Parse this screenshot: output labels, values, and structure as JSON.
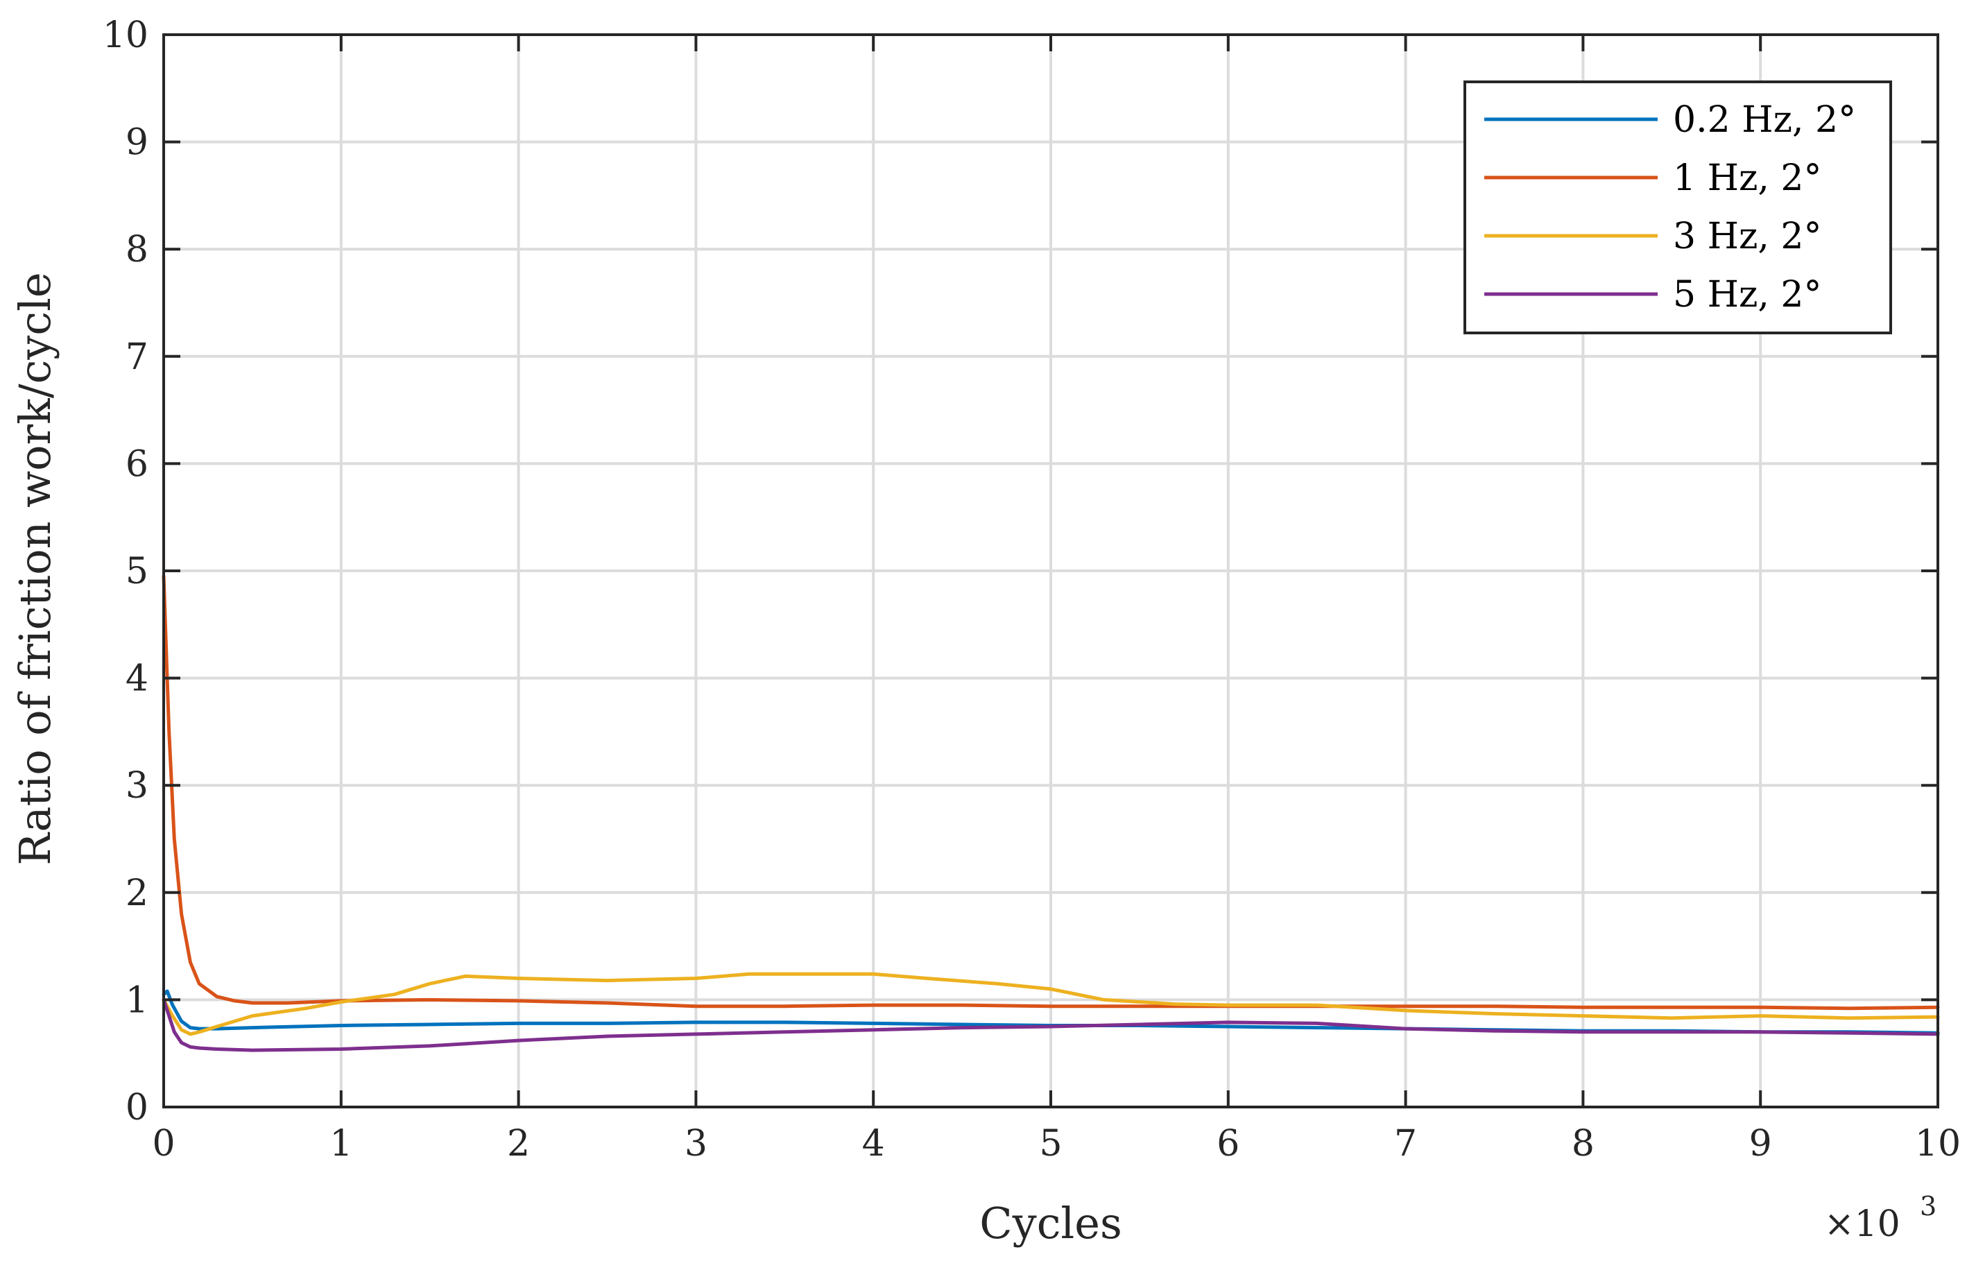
{
  "chart_data": {
    "type": "line",
    "title": "",
    "xlabel": "Cycles",
    "ylabel": "Ratio of friction work/cycle",
    "x_multiplier": "×10",
    "x_multiplier_exponent": "3",
    "xlim": [
      0,
      10
    ],
    "ylim": [
      0,
      10
    ],
    "xticks": [
      "0",
      "1",
      "2",
      "3",
      "4",
      "5",
      "6",
      "7",
      "8",
      "9",
      "10"
    ],
    "yticks": [
      "0",
      "1",
      "2",
      "3",
      "4",
      "5",
      "6",
      "7",
      "8",
      "9",
      "10"
    ],
    "grid": true,
    "legend_position": "top-right",
    "series": [
      {
        "name": "0.2 Hz, 2°",
        "color": "#0072BD",
        "x": [
          0,
          0.02,
          0.05,
          0.1,
          0.15,
          0.2,
          0.3,
          0.5,
          1,
          1.5,
          2,
          2.5,
          3,
          3.5,
          4,
          4.5,
          5,
          5.5,
          6,
          6.5,
          7,
          7.5,
          8,
          8.5,
          9,
          9.5,
          10
        ],
        "y": [
          1.05,
          1.08,
          0.95,
          0.8,
          0.74,
          0.73,
          0.73,
          0.74,
          0.76,
          0.77,
          0.78,
          0.78,
          0.79,
          0.79,
          0.78,
          0.77,
          0.76,
          0.76,
          0.75,
          0.74,
          0.73,
          0.72,
          0.71,
          0.71,
          0.7,
          0.7,
          0.69
        ]
      },
      {
        "name": "1 Hz, 2°",
        "color": "#D95319",
        "x": [
          0,
          0.03,
          0.06,
          0.1,
          0.15,
          0.2,
          0.3,
          0.4,
          0.5,
          0.7,
          1,
          1.5,
          2,
          2.5,
          3,
          3.5,
          4,
          4.5,
          5,
          5.5,
          6,
          6.5,
          7,
          7.5,
          8,
          8.5,
          9,
          9.5,
          10
        ],
        "y": [
          4.95,
          3.5,
          2.5,
          1.8,
          1.35,
          1.15,
          1.03,
          0.99,
          0.97,
          0.97,
          0.99,
          1.0,
          0.99,
          0.97,
          0.94,
          0.94,
          0.95,
          0.95,
          0.94,
          0.94,
          0.94,
          0.94,
          0.94,
          0.94,
          0.93,
          0.93,
          0.93,
          0.92,
          0.93
        ]
      },
      {
        "name": "3 Hz, 2°",
        "color": "#EDB120",
        "x": [
          0,
          0.05,
          0.1,
          0.15,
          0.2,
          0.3,
          0.5,
          0.8,
          1,
          1.3,
          1.5,
          1.7,
          2,
          2.5,
          3,
          3.3,
          3.7,
          4,
          4.3,
          4.7,
          5,
          5.3,
          5.7,
          6,
          6.5,
          7,
          7.5,
          8,
          8.5,
          9,
          9.5,
          10
        ],
        "y": [
          1.0,
          0.85,
          0.72,
          0.68,
          0.7,
          0.75,
          0.85,
          0.92,
          0.98,
          1.05,
          1.15,
          1.22,
          1.2,
          1.18,
          1.2,
          1.24,
          1.24,
          1.24,
          1.2,
          1.15,
          1.1,
          1.0,
          0.96,
          0.95,
          0.95,
          0.9,
          0.87,
          0.85,
          0.83,
          0.85,
          0.83,
          0.84
        ]
      },
      {
        "name": "5 Hz, 2°",
        "color": "#7E2F8E",
        "x": [
          0,
          0.03,
          0.06,
          0.1,
          0.15,
          0.2,
          0.3,
          0.5,
          1,
          1.5,
          2,
          2.5,
          3,
          3.5,
          4,
          4.5,
          5,
          5.5,
          6,
          6.5,
          7,
          7.5,
          8,
          8.5,
          9,
          9.5,
          10
        ],
        "y": [
          1.0,
          0.85,
          0.7,
          0.6,
          0.56,
          0.55,
          0.54,
          0.53,
          0.54,
          0.57,
          0.62,
          0.66,
          0.68,
          0.7,
          0.72,
          0.74,
          0.75,
          0.77,
          0.79,
          0.78,
          0.73,
          0.71,
          0.7,
          0.7,
          0.7,
          0.69,
          0.68
        ]
      }
    ]
  }
}
